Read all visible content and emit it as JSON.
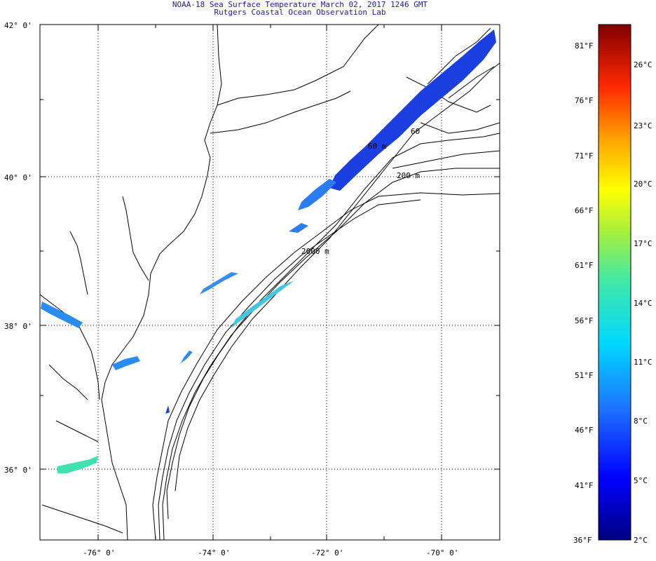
{
  "header": {
    "title_line1": "NOAA-18 Sea Surface Temperature March 02, 2017 1246 GMT",
    "title_line2": "Rutgers Coastal Ocean Observation Lab"
  },
  "map": {
    "lon_range": [
      -77,
      -69
    ],
    "lat_range": [
      35,
      42
    ],
    "lat_labels": [
      "42° 0'",
      "40° 0'",
      "38° 0'",
      "36° 0'"
    ],
    "lon_labels": [
      "-76° 0'",
      "-74° 0'",
      "-72° 0'",
      "-70° 0'"
    ],
    "contour_labels": [
      "60",
      "60 m",
      "200 m",
      "2000 m"
    ],
    "colors": {
      "sst_cold": "#1a3ee0",
      "sst_mid": "#2a8cf0",
      "sst_warm": "#40c8e0",
      "land_outline": "#000000",
      "grid": "#000000"
    }
  },
  "colorbar": {
    "fahrenheit_labels": [
      "81°F",
      "76°F",
      "71°F",
      "66°F",
      "61°F",
      "56°F",
      "51°F",
      "46°F",
      "41°F",
      "36°F"
    ],
    "celsius_labels": [
      "26°C",
      "23°C",
      "20°C",
      "17°C",
      "14°C",
      "11°C",
      "8°C",
      "5°C",
      "2°C"
    ]
  }
}
